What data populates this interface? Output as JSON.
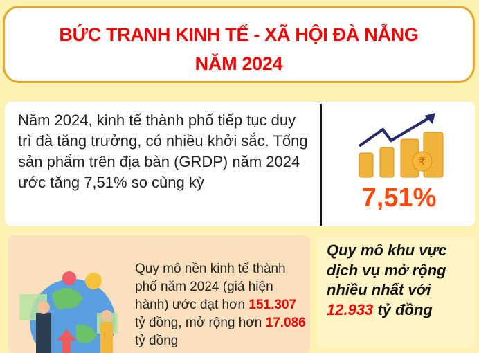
{
  "header": {
    "title_line1": "BỨC TRANH KINH TẾ - XÃ HỘI ĐÀ NẴNG",
    "title_line2": "NĂM 2024"
  },
  "growth": {
    "text": "Năm 2024, kinh tế thành phố tiếp tục duy trì đà tăng trưởng, có nhiều khởi sắc. Tổng sản phẩm trên địa bàn (GRDP) năm 2024 ước tăng 7,51% so cùng kỳ",
    "value": "7,51%",
    "icon": "coins-growth-arrow-icon"
  },
  "scale": {
    "text_a": "Quy mô nền kinh tế thành phố năm 2024 (giá hiện hành) ước đạt hơn ",
    "value1": "151.307",
    "text_b": " tỷ đồng, mở rộng hơn ",
    "value2": "17.086",
    "text_c": " tỷ đồng",
    "illustration": "business-people-globe-illustration"
  },
  "services": {
    "text_a": "Quy mô khu vực dịch vụ mở rộng nhiều nhất với ",
    "value": "12.933",
    "text_b": " tỷ đồng"
  },
  "colors": {
    "background": "#fdf2b3",
    "title": "#f40000",
    "accent": "#ff4a0c",
    "border": "#e8a72a"
  }
}
